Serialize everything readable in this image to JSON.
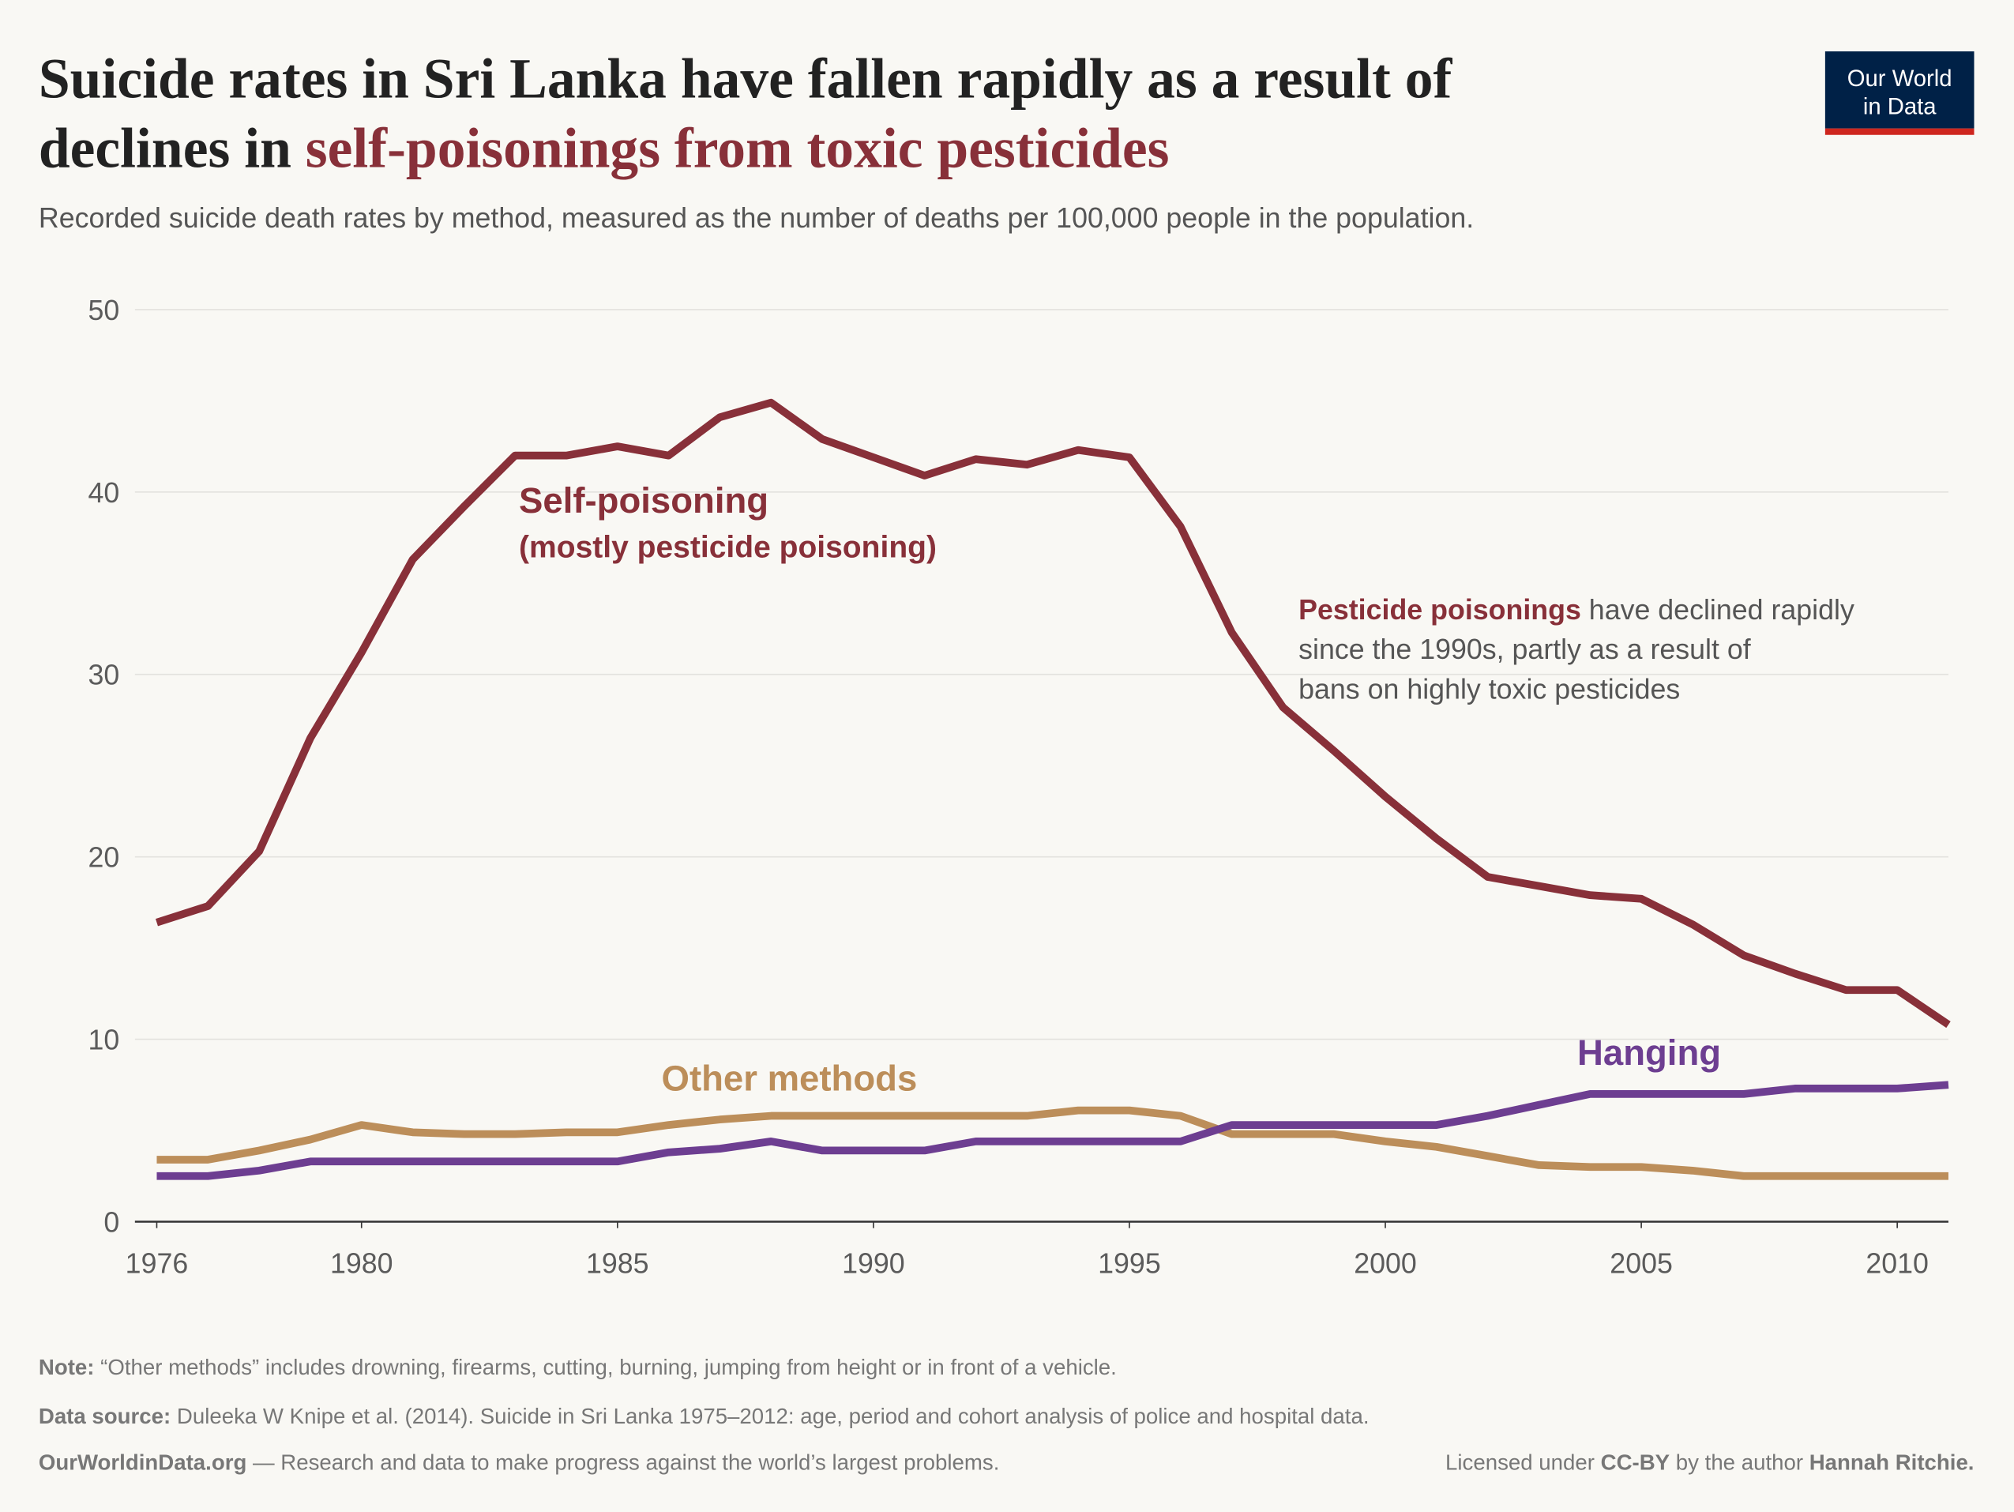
{
  "title": {
    "part1": "Suicide rates in Sri Lanka have fallen rapidly as a result of",
    "part2": "declines in ",
    "highlight": "self-poisonings from toxic pesticides"
  },
  "subtitle": "Recorded suicide death rates by method, measured as the number of deaths per 100,000 people in the population.",
  "logo": {
    "line1": "Our World",
    "line2": "in Data",
    "bg": "#002147",
    "accent": "#ce261e"
  },
  "annotations": {
    "self_label": "Self-poisoning",
    "self_sublabel": "(mostly pesticide poisoning)",
    "other_label": "Other methods",
    "hanging_label": "Hanging",
    "note_bold": "Pesticide poisonings",
    "note_line1": " have declined rapidly",
    "note_line2": "since the 1990s, partly as a result of",
    "note_line3": "bans on highly toxic pesticides"
  },
  "footer": {
    "note_label": "Note:",
    "note": " “Other methods” includes drowning, firearms, cutting, burning, jumping from height or in front of a vehicle.",
    "source_label": "Data source:",
    "source": " Duleeka W Knipe et al. (2014). Suicide in Sri Lanka 1975–2012: age, period and cohort analysis of police and hospital data.",
    "site": "OurWorldinData.org",
    "tagline": " — Research and data to make progress against the world’s largest problems.",
    "license_pre": "Licensed under ",
    "license": "CC-BY",
    "license_mid": " by the author ",
    "author": "Hannah Ritchie."
  },
  "chart_data": {
    "type": "line",
    "xlim": [
      1976,
      2011
    ],
    "ylim": [
      0,
      50
    ],
    "yticks": [
      0,
      10,
      20,
      30,
      40,
      50
    ],
    "xticks": [
      1976,
      1980,
      1985,
      1990,
      1995,
      2000,
      2005,
      2010
    ],
    "grid": true,
    "x": [
      1976,
      1977,
      1978,
      1979,
      1980,
      1981,
      1982,
      1983,
      1984,
      1985,
      1986,
      1987,
      1988,
      1989,
      1990,
      1991,
      1992,
      1993,
      1994,
      1995,
      1996,
      1997,
      1998,
      1999,
      2000,
      2001,
      2002,
      2003,
      2004,
      2005,
      2006,
      2007,
      2008,
      2009,
      2010,
      2011
    ],
    "series": [
      {
        "name": "Self-poisoning",
        "color": "#883039",
        "values": [
          16.4,
          17.3,
          20.3,
          26.5,
          31.2,
          36.3,
          39.2,
          42.0,
          42.0,
          42.5,
          42.0,
          44.1,
          44.9,
          42.9,
          41.9,
          40.9,
          41.8,
          41.5,
          42.3,
          41.9,
          38.1,
          32.3,
          28.2,
          25.8,
          23.3,
          21.0,
          18.9,
          18.4,
          17.9,
          17.7,
          16.3,
          14.6,
          13.6,
          12.7,
          12.7,
          10.8
        ]
      },
      {
        "name": "Other methods",
        "color": "#bc8e5a",
        "values": [
          3.4,
          3.4,
          3.9,
          4.5,
          5.3,
          4.9,
          4.8,
          4.8,
          4.9,
          4.9,
          5.3,
          5.6,
          5.8,
          5.8,
          5.8,
          5.8,
          5.8,
          5.8,
          6.1,
          6.1,
          5.8,
          4.8,
          4.8,
          4.8,
          4.4,
          4.1,
          3.6,
          3.1,
          3.0,
          3.0,
          2.8,
          2.5,
          2.5,
          2.5,
          2.5,
          2.5
        ]
      },
      {
        "name": "Hanging",
        "color": "#6d3e91",
        "values": [
          2.5,
          2.5,
          2.8,
          3.3,
          3.3,
          3.3,
          3.3,
          3.3,
          3.3,
          3.3,
          3.8,
          4.0,
          4.4,
          3.9,
          3.9,
          3.9,
          4.4,
          4.4,
          4.4,
          4.4,
          4.4,
          5.3,
          5.3,
          5.3,
          5.3,
          5.3,
          5.8,
          6.4,
          7.0,
          7.0,
          7.0,
          7.0,
          7.3,
          7.3,
          7.3,
          7.5
        ]
      }
    ]
  }
}
